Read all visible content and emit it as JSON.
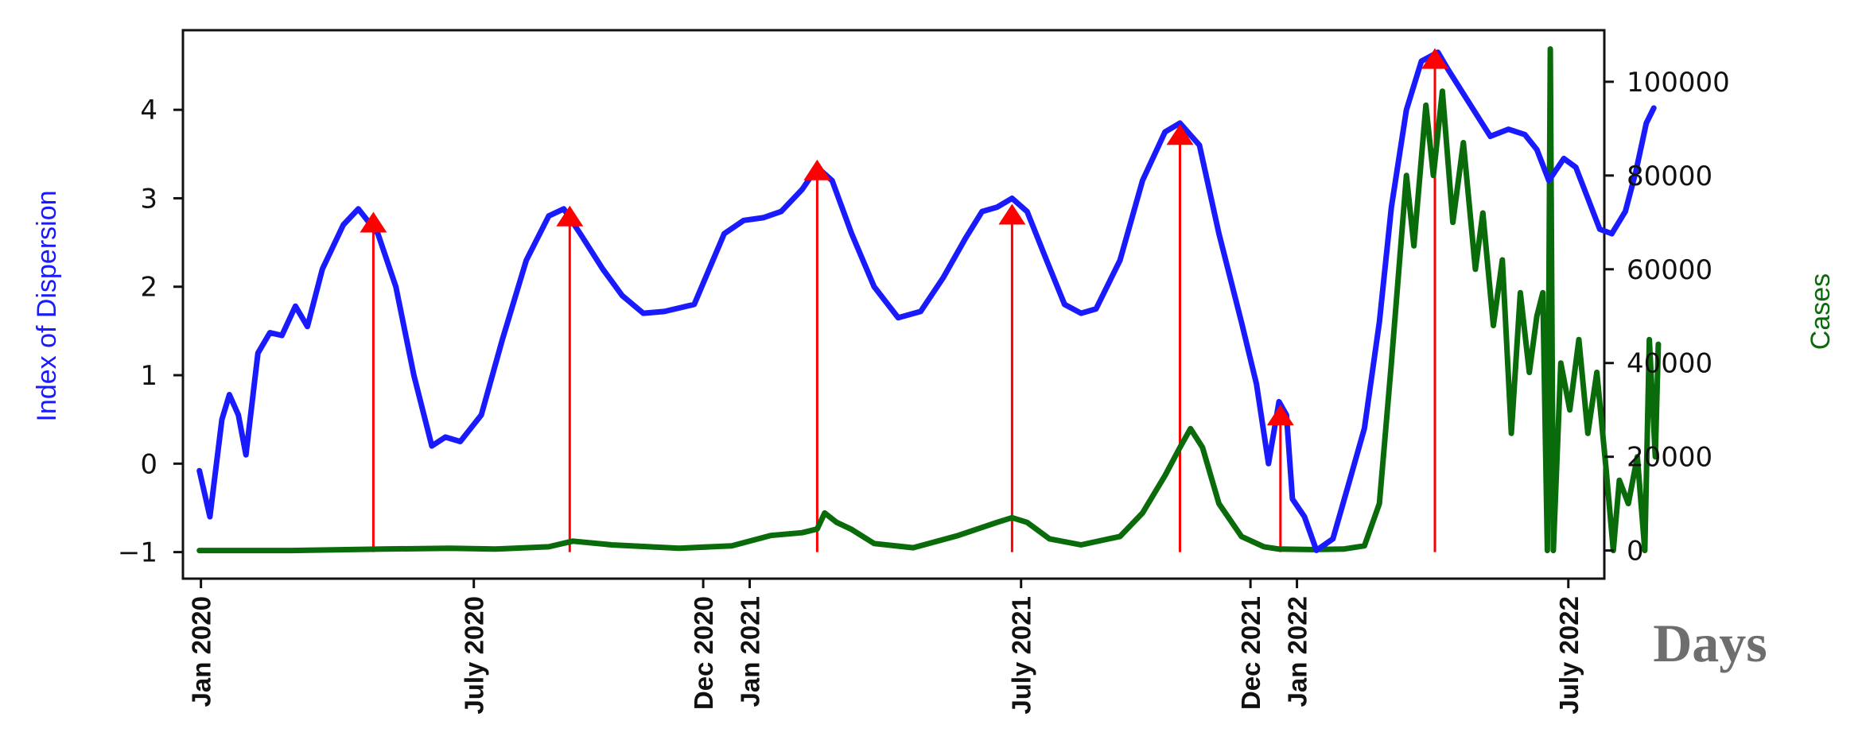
{
  "chart_data": {
    "type": "line",
    "xlabel": "Days",
    "ylabel": "Index of Dispersion",
    "y2label": "Cases",
    "x_range": [
      "2019-12-20",
      "2022-07-25"
    ],
    "ylim": [
      -1.3,
      4.9
    ],
    "y2lim": [
      -6000,
      111000
    ],
    "grid": false,
    "x_ticks": [
      {
        "label": "Jan 2020",
        "date": "2020-01-01"
      },
      {
        "label": "July 2020",
        "date": "2020-07-01"
      },
      {
        "label": "Dec 2020",
        "date": "2020-12-01"
      },
      {
        "label": "Jan 2021",
        "date": "2021-01-01"
      },
      {
        "label": "July 2021",
        "date": "2021-07-01"
      },
      {
        "label": "Dec 2021",
        "date": "2021-12-01"
      },
      {
        "label": "Jan 2022",
        "date": "2022-01-01"
      },
      {
        "label": "July 2022",
        "date": "2022-07-01"
      }
    ],
    "y_ticks": [
      {
        "label": "−1",
        "value": -1
      },
      {
        "label": "0",
        "value": 0
      },
      {
        "label": "1",
        "value": 1
      },
      {
        "label": "2",
        "value": 2
      },
      {
        "label": "3",
        "value": 3
      },
      {
        "label": "4",
        "value": 4
      }
    ],
    "y2_ticks": [
      {
        "label": "0",
        "value": 0
      },
      {
        "label": "20000",
        "value": 20000
      },
      {
        "label": "40000",
        "value": 40000
      },
      {
        "label": "60000",
        "value": 60000
      },
      {
        "label": "80000",
        "value": 80000
      },
      {
        "label": "100000",
        "value": 100000
      }
    ],
    "series": [
      {
        "axis": "left",
        "color": "#1a1aff",
        "points": [
          [
            "2019-12-31",
            -0.08
          ],
          [
            "2020-01-07",
            -0.6
          ],
          [
            "2020-01-15",
            0.5
          ],
          [
            "2020-01-20",
            0.78
          ],
          [
            "2020-01-26",
            0.55
          ],
          [
            "2020-01-31",
            0.1
          ],
          [
            "2020-02-08",
            1.25
          ],
          [
            "2020-02-16",
            1.48
          ],
          [
            "2020-02-24",
            1.45
          ],
          [
            "2020-03-04",
            1.78
          ],
          [
            "2020-03-12",
            1.55
          ],
          [
            "2020-03-22",
            2.2
          ],
          [
            "2020-04-05",
            2.7
          ],
          [
            "2020-04-15",
            2.88
          ],
          [
            "2020-04-28",
            2.6
          ],
          [
            "2020-05-10",
            2.0
          ],
          [
            "2020-05-22",
            1.0
          ],
          [
            "2020-06-03",
            0.2
          ],
          [
            "2020-06-12",
            0.3
          ],
          [
            "2020-06-22",
            0.25
          ],
          [
            "2020-07-06",
            0.55
          ],
          [
            "2020-07-20",
            1.4
          ],
          [
            "2020-08-05",
            2.3
          ],
          [
            "2020-08-20",
            2.8
          ],
          [
            "2020-08-30",
            2.88
          ],
          [
            "2020-09-10",
            2.6
          ],
          [
            "2020-09-25",
            2.2
          ],
          [
            "2020-10-08",
            1.9
          ],
          [
            "2020-10-22",
            1.7
          ],
          [
            "2020-11-05",
            1.72
          ],
          [
            "2020-11-25",
            1.8
          ],
          [
            "2020-12-15",
            2.6
          ],
          [
            "2020-12-28",
            2.75
          ],
          [
            "2021-01-10",
            2.78
          ],
          [
            "2021-01-22",
            2.85
          ],
          [
            "2021-02-05",
            3.1
          ],
          [
            "2021-02-15",
            3.35
          ],
          [
            "2021-02-25",
            3.2
          ],
          [
            "2021-03-10",
            2.6
          ],
          [
            "2021-03-25",
            2.0
          ],
          [
            "2021-04-10",
            1.65
          ],
          [
            "2021-04-25",
            1.72
          ],
          [
            "2021-05-10",
            2.1
          ],
          [
            "2021-05-25",
            2.55
          ],
          [
            "2021-06-05",
            2.85
          ],
          [
            "2021-06-15",
            2.9
          ],
          [
            "2021-06-25",
            3.0
          ],
          [
            "2021-07-05",
            2.85
          ],
          [
            "2021-07-18",
            2.3
          ],
          [
            "2021-07-30",
            1.8
          ],
          [
            "2021-08-10",
            1.7
          ],
          [
            "2021-08-20",
            1.75
          ],
          [
            "2021-09-05",
            2.3
          ],
          [
            "2021-09-20",
            3.2
          ],
          [
            "2021-10-05",
            3.75
          ],
          [
            "2021-10-15",
            3.85
          ],
          [
            "2021-10-28",
            3.6
          ],
          [
            "2021-11-10",
            2.6
          ],
          [
            "2021-11-25",
            1.6
          ],
          [
            "2021-12-05",
            0.9
          ],
          [
            "2021-12-13",
            0.0
          ],
          [
            "2021-12-20",
            0.7
          ],
          [
            "2021-12-25",
            0.55
          ],
          [
            "2021-12-29",
            -0.4
          ],
          [
            "2022-01-06",
            -0.6
          ],
          [
            "2022-01-14",
            -0.98
          ],
          [
            "2022-01-25",
            -0.85
          ],
          [
            "2022-02-05",
            -0.2
          ],
          [
            "2022-02-15",
            0.4
          ],
          [
            "2022-02-25",
            1.6
          ],
          [
            "2022-03-05",
            2.9
          ],
          [
            "2022-03-15",
            4.0
          ],
          [
            "2022-03-25",
            4.55
          ],
          [
            "2022-04-05",
            4.65
          ],
          [
            "2022-04-12",
            4.45
          ],
          [
            "2022-04-25",
            4.1
          ],
          [
            "2022-05-10",
            3.7
          ],
          [
            "2022-05-22",
            3.78
          ],
          [
            "2022-06-02",
            3.72
          ],
          [
            "2022-06-10",
            3.55
          ],
          [
            "2022-06-18",
            3.2
          ],
          [
            "2022-06-28",
            3.45
          ],
          [
            "2022-07-06",
            3.35
          ],
          [
            "2022-07-14",
            3.0
          ],
          [
            "2022-07-22",
            2.65
          ],
          [
            "2022-07-30",
            2.6
          ],
          [
            "2022-08-08",
            2.85
          ],
          [
            "2022-08-15",
            3.3
          ],
          [
            "2022-08-22",
            3.85
          ],
          [
            "2022-08-27",
            4.02
          ]
        ]
      },
      {
        "axis": "right",
        "color": "#0a6b0a",
        "points": [
          [
            "2019-12-31",
            0
          ],
          [
            "2020-03-01",
            0
          ],
          [
            "2020-05-01",
            300
          ],
          [
            "2020-06-15",
            500
          ],
          [
            "2020-07-15",
            300
          ],
          [
            "2020-08-20",
            800
          ],
          [
            "2020-09-05",
            2000
          ],
          [
            "2020-10-01",
            1200
          ],
          [
            "2020-11-15",
            500
          ],
          [
            "2020-12-20",
            1000
          ],
          [
            "2021-01-15",
            3200
          ],
          [
            "2021-02-05",
            3800
          ],
          [
            "2021-02-15",
            4600
          ],
          [
            "2021-02-20",
            8000
          ],
          [
            "2021-02-28",
            6000
          ],
          [
            "2021-03-10",
            4500
          ],
          [
            "2021-03-25",
            1500
          ],
          [
            "2021-04-20",
            600
          ],
          [
            "2021-05-20",
            3200
          ],
          [
            "2021-06-15",
            6000
          ],
          [
            "2021-06-25",
            7000
          ],
          [
            "2021-07-05",
            6000
          ],
          [
            "2021-07-20",
            2500
          ],
          [
            "2021-08-10",
            1200
          ],
          [
            "2021-09-05",
            3000
          ],
          [
            "2021-09-20",
            8000
          ],
          [
            "2021-10-05",
            16000
          ],
          [
            "2021-10-15",
            22000
          ],
          [
            "2021-10-22",
            26000
          ],
          [
            "2021-10-30",
            22000
          ],
          [
            "2021-11-10",
            10000
          ],
          [
            "2021-11-25",
            3000
          ],
          [
            "2021-12-10",
            800
          ],
          [
            "2021-12-20",
            300
          ],
          [
            "2022-01-10",
            200
          ],
          [
            "2022-02-01",
            300
          ],
          [
            "2022-02-15",
            1000
          ],
          [
            "2022-02-25",
            10000
          ],
          [
            "2022-03-05",
            40000
          ],
          [
            "2022-03-15",
            80000
          ],
          [
            "2022-03-20",
            65000
          ],
          [
            "2022-03-28",
            95000
          ],
          [
            "2022-04-02",
            80000
          ],
          [
            "2022-04-08",
            98000
          ],
          [
            "2022-04-15",
            70000
          ],
          [
            "2022-04-22",
            87000
          ],
          [
            "2022-04-30",
            60000
          ],
          [
            "2022-05-05",
            72000
          ],
          [
            "2022-05-12",
            48000
          ],
          [
            "2022-05-18",
            62000
          ],
          [
            "2022-05-24",
            25000
          ],
          [
            "2022-05-30",
            55000
          ],
          [
            "2022-06-05",
            38000
          ],
          [
            "2022-06-10",
            50000
          ],
          [
            "2022-06-14",
            55000
          ],
          [
            "2022-06-17",
            0
          ],
          [
            "2022-06-19",
            107000
          ],
          [
            "2022-06-21",
            0
          ],
          [
            "2022-06-26",
            40000
          ],
          [
            "2022-07-02",
            30000
          ],
          [
            "2022-07-08",
            45000
          ],
          [
            "2022-07-14",
            25000
          ],
          [
            "2022-07-20",
            38000
          ],
          [
            "2022-07-26",
            18000
          ],
          [
            "2022-07-31",
            0
          ],
          [
            "2022-08-04",
            15000
          ],
          [
            "2022-08-10",
            10000
          ],
          [
            "2022-08-16",
            20000
          ],
          [
            "2022-08-21",
            0
          ],
          [
            "2022-08-24",
            45000
          ],
          [
            "2022-08-28",
            20000
          ],
          [
            "2022-08-30",
            44000
          ]
        ]
      }
    ],
    "peaks": [
      {
        "date": "2020-04-25",
        "value": 2.73
      },
      {
        "date": "2020-09-03",
        "value": 2.8
      },
      {
        "date": "2021-02-15",
        "value": 3.32
      },
      {
        "date": "2021-06-25",
        "value": 2.82
      },
      {
        "date": "2021-10-15",
        "value": 3.72
      },
      {
        "date": "2021-12-21",
        "value": 0.55
      },
      {
        "date": "2022-04-03",
        "value": 4.58
      }
    ],
    "peak_color": "#ff0000"
  }
}
